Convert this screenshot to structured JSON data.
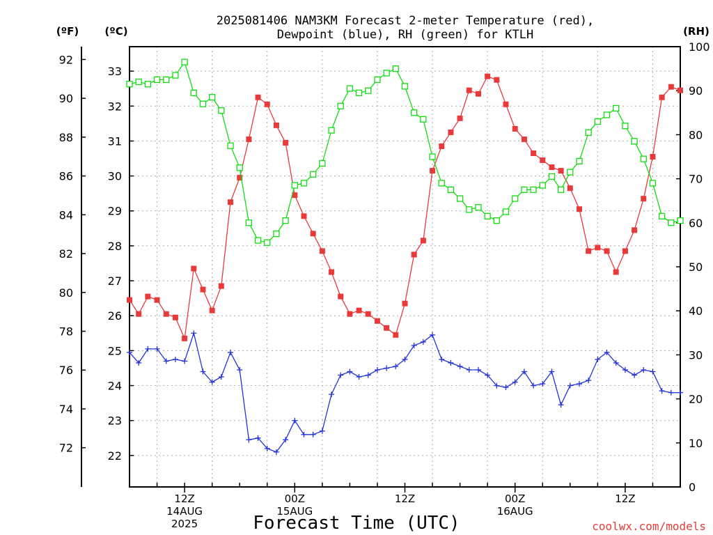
{
  "chart_data": {
    "type": "line",
    "title_line1": "2025081406 NAM3KM Forecast 2-meter Temperature (red),",
    "title_line2": "Dewpoint (blue), RH (green) for KTLH",
    "xlabel": "Forecast Time (UTC)",
    "credit": "coolwx.com/models",
    "unit_labels": {
      "fahrenheit": "(ºF)",
      "celsius": "(ºC)",
      "rh": "(RH)"
    },
    "x_tick_labels": [
      {
        "hour": 6,
        "line1": "12Z",
        "line2": "14AUG",
        "line3": "2025"
      },
      {
        "hour": 18,
        "line1": "00Z",
        "line2": "15AUG",
        "line3": ""
      },
      {
        "hour": 30,
        "line1": "12Z",
        "line2": "",
        "line3": ""
      },
      {
        "hour": 42,
        "line1": "00Z",
        "line2": "16AUG",
        "line3": ""
      },
      {
        "hour": 54,
        "line1": "12Z",
        "line2": "",
        "line3": ""
      }
    ],
    "x_range_hours_since_06z": [
      0,
      60
    ],
    "celsius_ticks": [
      22,
      23,
      24,
      25,
      26,
      27,
      28,
      29,
      30,
      31,
      32,
      33
    ],
    "celsius_range": [
      21.1,
      33.7
    ],
    "fahrenheit_ticks": [
      72,
      74,
      76,
      78,
      80,
      82,
      84,
      86,
      88,
      90,
      92
    ],
    "rh_ticks": [
      0,
      10,
      20,
      30,
      40,
      50,
      60,
      70,
      80,
      90,
      100
    ],
    "rh_range": [
      0,
      100
    ],
    "grid": true,
    "series": [
      {
        "name": "Temperature",
        "color": "#e83a3a",
        "marker": "filled-square",
        "axis": "celsius",
        "x": [
          0,
          1,
          2,
          3,
          4,
          5,
          6,
          7,
          8,
          9,
          10,
          11,
          12,
          13,
          14,
          15,
          16,
          17,
          18,
          19,
          20,
          21,
          22,
          23,
          24,
          25,
          26,
          27,
          28,
          29,
          30,
          31,
          32,
          33,
          34,
          35,
          36,
          37,
          38,
          39,
          40,
          41,
          42,
          43,
          44,
          45,
          46,
          47,
          48,
          49,
          50,
          51,
          52,
          53,
          54,
          55,
          56,
          57,
          58,
          59,
          60
        ],
        "values": [
          26.45,
          26.05,
          26.55,
          26.45,
          26.05,
          25.95,
          25.35,
          27.35,
          26.75,
          26.15,
          26.85,
          29.25,
          29.95,
          31.05,
          32.25,
          32.05,
          31.45,
          30.95,
          29.45,
          28.85,
          28.35,
          27.85,
          27.25,
          26.55,
          26.05,
          26.15,
          26.05,
          25.85,
          25.65,
          25.45,
          26.35,
          27.75,
          28.15,
          30.15,
          30.85,
          31.25,
          31.65,
          32.45,
          32.35,
          32.85,
          32.75,
          32.05,
          31.35,
          31.05,
          30.65,
          30.45,
          30.25,
          30.15,
          29.65,
          29.05,
          27.85,
          27.95,
          27.85,
          27.25,
          27.85,
          28.45,
          29.35,
          30.55,
          32.25,
          32.55,
          32.45
        ]
      },
      {
        "name": "Dewpoint",
        "color": "#2233dd",
        "marker": "plus",
        "axis": "celsius",
        "x": [
          0,
          1,
          2,
          3,
          4,
          5,
          6,
          7,
          8,
          9,
          10,
          11,
          12,
          13,
          14,
          15,
          16,
          17,
          18,
          19,
          20,
          21,
          22,
          23,
          24,
          25,
          26,
          27,
          28,
          29,
          30,
          31,
          32,
          33,
          34,
          35,
          36,
          37,
          38,
          39,
          40,
          41,
          42,
          43,
          44,
          45,
          46,
          47,
          48,
          49,
          50,
          51,
          52,
          53,
          54,
          55,
          56,
          57,
          58,
          59,
          60
        ],
        "values": [
          24.95,
          24.65,
          25.05,
          25.05,
          24.7,
          24.75,
          24.7,
          25.5,
          24.4,
          24.1,
          24.25,
          24.95,
          24.45,
          22.45,
          22.5,
          22.2,
          22.1,
          22.45,
          23.0,
          22.6,
          22.6,
          22.7,
          23.75,
          24.3,
          24.4,
          24.25,
          24.3,
          24.45,
          24.5,
          24.55,
          24.75,
          25.15,
          25.25,
          25.45,
          24.75,
          24.65,
          24.55,
          24.45,
          24.45,
          24.3,
          24.0,
          23.95,
          24.1,
          24.4,
          24.0,
          24.05,
          24.4,
          23.45,
          24.0,
          24.05,
          24.15,
          24.75,
          24.95,
          24.65,
          24.45,
          24.3,
          24.45,
          24.4,
          23.85,
          23.8,
          23.8
        ]
      },
      {
        "name": "RH",
        "color": "#11dd11",
        "marker": "open-square",
        "axis": "rh",
        "x": [
          0,
          1,
          2,
          3,
          4,
          5,
          6,
          7,
          8,
          9,
          10,
          11,
          12,
          13,
          14,
          15,
          16,
          17,
          18,
          19,
          20,
          21,
          22,
          23,
          24,
          25,
          26,
          27,
          28,
          29,
          30,
          31,
          32,
          33,
          34,
          35,
          36,
          37,
          38,
          39,
          40,
          41,
          42,
          43,
          44,
          45,
          46,
          47,
          48,
          49,
          50,
          51,
          52,
          53,
          54,
          55,
          56,
          57,
          58,
          59,
          60
        ],
        "values": [
          91.5,
          92,
          91.5,
          92.5,
          92.5,
          93.5,
          96.5,
          89.5,
          87,
          88.5,
          85.5,
          77.5,
          72.5,
          60,
          56,
          55.5,
          57.5,
          60.5,
          68.5,
          69,
          71,
          73.5,
          81,
          86.5,
          90.5,
          89.5,
          90,
          92.5,
          94,
          95,
          91,
          85,
          83.5,
          75,
          69,
          67.5,
          65.5,
          63,
          63.5,
          61.5,
          60.5,
          62.5,
          65.5,
          67.5,
          67.5,
          68.5,
          70.5,
          67.5,
          71.5,
          74,
          80.5,
          83,
          84.5,
          86,
          82,
          78.5,
          74.5,
          69,
          61.5,
          60,
          60.5
        ]
      }
    ]
  }
}
